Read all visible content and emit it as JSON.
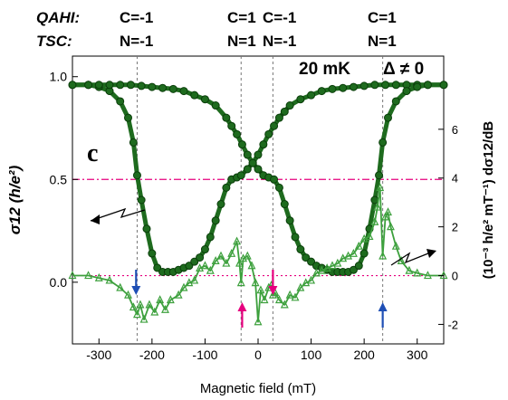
{
  "header": {
    "rows": [
      {
        "label": "QAHI:",
        "entries": [
          "C=-1",
          "C=1",
          "C=-1",
          "C=1"
        ]
      },
      {
        "label": "TSC:",
        "entries": [
          "N=-1",
          "N=1",
          "N=-1",
          "N=1"
        ]
      }
    ]
  },
  "chart_data": {
    "type": "scatter",
    "panel_label": "c",
    "annotations": [
      "20 mK",
      "Δ ≠ 0"
    ],
    "xlabel": "Magnetic field (mT)",
    "ylabel_left": "σ12 (h/e²)",
    "ylabel_right": "(10⁻³ h/e² mT⁻¹) dσ12/dB",
    "xlim": [
      -350,
      350
    ],
    "ylim_left": [
      -0.3,
      1.1
    ],
    "ylim_right": [
      -2.8,
      9.0
    ],
    "x_ticks": [
      "-300",
      "-200",
      "-100",
      "0",
      "100",
      "200",
      "300"
    ],
    "y_ticks_left": [
      "0.0",
      "0.5",
      "1.0"
    ],
    "y_ticks_right": [
      "-2",
      "0",
      "2",
      "4",
      "6"
    ],
    "transition_fields": [
      -228,
      -32,
      28,
      235
    ],
    "reference_lines": [
      {
        "axis": "left",
        "y": 0.5,
        "color": "#e6007e",
        "style": "dash-dot"
      },
      {
        "axis": "right",
        "y": 0,
        "color": "#e6007e",
        "style": "dotted"
      }
    ],
    "arrows": [
      {
        "x": -230,
        "direction": "down",
        "color": "#1f4fb5"
      },
      {
        "x": -30,
        "direction": "up",
        "color": "#e6007e"
      },
      {
        "x": 28,
        "direction": "down",
        "color": "#e6007e"
      },
      {
        "x": 235,
        "direction": "up",
        "color": "#1f4fb5"
      }
    ],
    "series": [
      {
        "axis": "left",
        "marker": "circle",
        "color": "#1e6b1e",
        "x": [
          -350,
          -320,
          -300,
          -280,
          -260,
          -245,
          -235,
          -228,
          -220,
          -210,
          -200,
          -190,
          -180,
          -170,
          -160,
          -150,
          -140,
          -130,
          -120,
          -110,
          -100,
          -90,
          -80,
          -70,
          -60,
          -50,
          -40,
          -32,
          -20,
          -10,
          0,
          10,
          20,
          30,
          40,
          50,
          60,
          80,
          100,
          120,
          140,
          160,
          180,
          200,
          220,
          240,
          260,
          280,
          300,
          320,
          350
        ],
        "y": [
          0.96,
          0.96,
          0.95,
          0.93,
          0.88,
          0.8,
          0.68,
          0.52,
          0.4,
          0.26,
          0.14,
          0.07,
          0.05,
          0.05,
          0.05,
          0.06,
          0.07,
          0.08,
          0.1,
          0.12,
          0.16,
          0.22,
          0.3,
          0.38,
          0.46,
          0.5,
          0.51,
          0.52,
          0.55,
          0.58,
          0.62,
          0.67,
          0.72,
          0.76,
          0.8,
          0.83,
          0.86,
          0.89,
          0.91,
          0.93,
          0.94,
          0.945,
          0.95,
          0.955,
          0.96,
          0.96,
          0.96,
          0.96,
          0.96,
          0.96,
          0.96
        ]
      },
      {
        "axis": "left",
        "marker": "circle",
        "color": "#1e6b1e",
        "x": [
          -350,
          -320,
          -300,
          -280,
          -260,
          -240,
          -220,
          -200,
          -180,
          -160,
          -140,
          -120,
          -100,
          -80,
          -60,
          -50,
          -40,
          -30,
          -20,
          -10,
          0,
          10,
          20,
          30,
          40,
          50,
          60,
          70,
          80,
          90,
          100,
          110,
          120,
          130,
          140,
          150,
          160,
          170,
          180,
          190,
          200,
          210,
          220,
          228,
          235,
          245,
          260,
          280,
          300,
          320,
          350
        ],
        "y": [
          0.96,
          0.96,
          0.96,
          0.96,
          0.96,
          0.96,
          0.955,
          0.95,
          0.945,
          0.94,
          0.93,
          0.91,
          0.89,
          0.86,
          0.8,
          0.76,
          0.72,
          0.67,
          0.62,
          0.58,
          0.55,
          0.52,
          0.51,
          0.5,
          0.46,
          0.38,
          0.3,
          0.22,
          0.16,
          0.12,
          0.1,
          0.08,
          0.07,
          0.06,
          0.05,
          0.05,
          0.05,
          0.05,
          0.06,
          0.08,
          0.14,
          0.26,
          0.4,
          0.52,
          0.68,
          0.8,
          0.88,
          0.93,
          0.95,
          0.96,
          0.96
        ]
      },
      {
        "axis": "right",
        "marker": "triangle",
        "color": "#3da03d",
        "x": [
          -350,
          -320,
          -300,
          -280,
          -260,
          -245,
          -235,
          -228,
          -222,
          -215,
          -205,
          -195,
          -185,
          -175,
          -165,
          -150,
          -140,
          -130,
          -120,
          -110,
          -100,
          -90,
          -80,
          -70,
          -60,
          -50,
          -40,
          -35,
          -32,
          -28,
          -20,
          -12,
          -5,
          0,
          5,
          12,
          20,
          25,
          28,
          32,
          40,
          50,
          60,
          70,
          80,
          90,
          100,
          110,
          120,
          130,
          140,
          150,
          160,
          170,
          180,
          190,
          200,
          210,
          220,
          225,
          230,
          235,
          240,
          245,
          250,
          260,
          270,
          285,
          300,
          320,
          350
        ],
        "y": [
          0,
          0,
          -0.1,
          -0.2,
          -0.5,
          -0.8,
          -1.3,
          -1.6,
          -1.2,
          -1.8,
          -1.2,
          -1.5,
          -1.0,
          -1.4,
          -1.0,
          -0.8,
          -0.5,
          -0.3,
          -0.2,
          0.3,
          0.4,
          0.2,
          0.6,
          0.8,
          0.5,
          0.9,
          1.4,
          0.5,
          -0.3,
          0.7,
          0.8,
          0.4,
          -0.3,
          -1.9,
          -0.6,
          -1.0,
          -0.5,
          -0.4,
          -0.8,
          -0.7,
          -1.0,
          -1.2,
          -0.8,
          -0.9,
          -0.5,
          -0.3,
          -0.2,
          0.1,
          0.2,
          0.3,
          0.4,
          0.5,
          0.7,
          0.8,
          0.9,
          1.2,
          1.5,
          1.6,
          2.2,
          2.8,
          3.6,
          0.8,
          2.4,
          2.6,
          2.0,
          1.2,
          0.6,
          0.2,
          0.1,
          0,
          0
        ]
      }
    ]
  }
}
